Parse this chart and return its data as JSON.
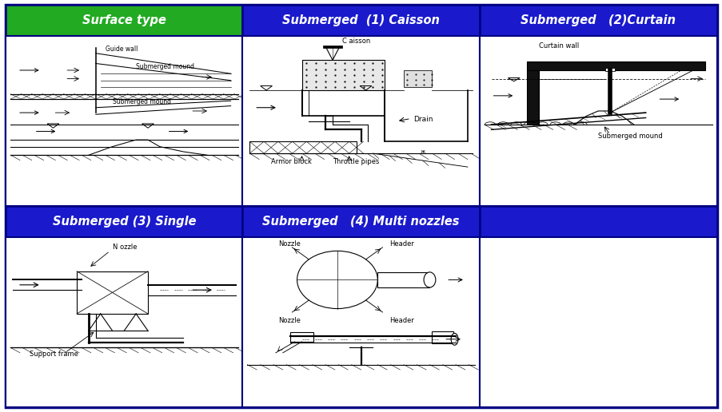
{
  "fig_width": 9.04,
  "fig_height": 5.16,
  "dpi": 100,
  "header_green": "#22aa22",
  "header_blue": "#1a1acc",
  "header_text_color": "#ffffff",
  "border_color": "#000080",
  "headers_top": [
    "Surface type",
    "Submerged  (1) Caisson",
    "Submerged   (2)Curtain"
  ],
  "headers_bottom": [
    "Submerged (3) Single",
    "Submerged   (4) Multi nozzles",
    ""
  ]
}
